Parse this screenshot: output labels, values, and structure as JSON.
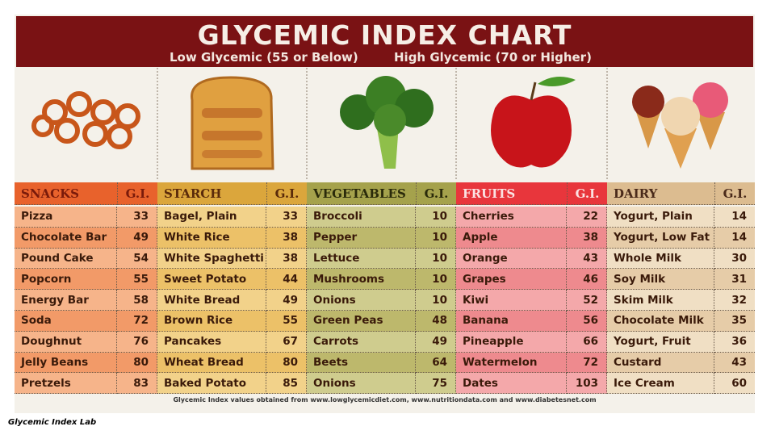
{
  "header": {
    "title": "GLYCEMIC INDEX CHART",
    "subtitle_low": "Low Glycemic (55 or Below)",
    "subtitle_high": "High Glycemic (70 or Higher)"
  },
  "table": {
    "columns": [
      {
        "name": "SNACKS",
        "gi_label": "G.I.",
        "rows": [
          [
            "Pizza",
            33
          ],
          [
            "Chocolate Bar",
            49
          ],
          [
            "Pound Cake",
            54
          ],
          [
            "Popcorn",
            55
          ],
          [
            "Energy Bar",
            58
          ],
          [
            "Soda",
            72
          ],
          [
            "Doughnut",
            76
          ],
          [
            "Jelly Beans",
            80
          ],
          [
            "Pretzels",
            83
          ]
        ]
      },
      {
        "name": "STARCH",
        "gi_label": "G.I.",
        "rows": [
          [
            "Bagel, Plain",
            33
          ],
          [
            "White Rice",
            38
          ],
          [
            "White Spaghetti",
            38
          ],
          [
            "Sweet Potato",
            44
          ],
          [
            "White Bread",
            49
          ],
          [
            "Brown Rice",
            55
          ],
          [
            "Pancakes",
            67
          ],
          [
            "Wheat Bread",
            80
          ],
          [
            "Baked Potato",
            85
          ]
        ]
      },
      {
        "name": "VEGETABLES",
        "gi_label": "G.I.",
        "rows": [
          [
            "Broccoli",
            10
          ],
          [
            "Pepper",
            10
          ],
          [
            "Lettuce",
            10
          ],
          [
            "Mushrooms",
            10
          ],
          [
            "Onions",
            10
          ],
          [
            "Green Peas",
            48
          ],
          [
            "Carrots",
            49
          ],
          [
            "Beets",
            64
          ],
          [
            "Onions",
            75
          ]
        ]
      },
      {
        "name": "FRUITS",
        "gi_label": "G.I.",
        "rows": [
          [
            "Cherries",
            22
          ],
          [
            "Apple",
            38
          ],
          [
            "Orange",
            43
          ],
          [
            "Grapes",
            46
          ],
          [
            "Kiwi",
            52
          ],
          [
            "Banana",
            56
          ],
          [
            "Pineapple",
            66
          ],
          [
            "Watermelon",
            72
          ],
          [
            "Dates",
            103
          ]
        ]
      },
      {
        "name": "DAIRY",
        "gi_label": "G.I.",
        "rows": [
          [
            "Yogurt, Plain",
            14
          ],
          [
            "Yogurt, Low Fat",
            14
          ],
          [
            "Whole Milk",
            30
          ],
          [
            "Soy Milk",
            31
          ],
          [
            "Skim Milk",
            32
          ],
          [
            "Chocolate Milk",
            35
          ],
          [
            "Yogurt, Fruit",
            36
          ],
          [
            "Custard",
            43
          ],
          [
            "Ice Cream",
            60
          ]
        ]
      }
    ]
  },
  "footer": "Glycemic Index values obtained from www.lowglycemicdiet.com, www.nutritiondata.com and www.diabetesnet.com",
  "caption": "Glycemic Index Lab"
}
